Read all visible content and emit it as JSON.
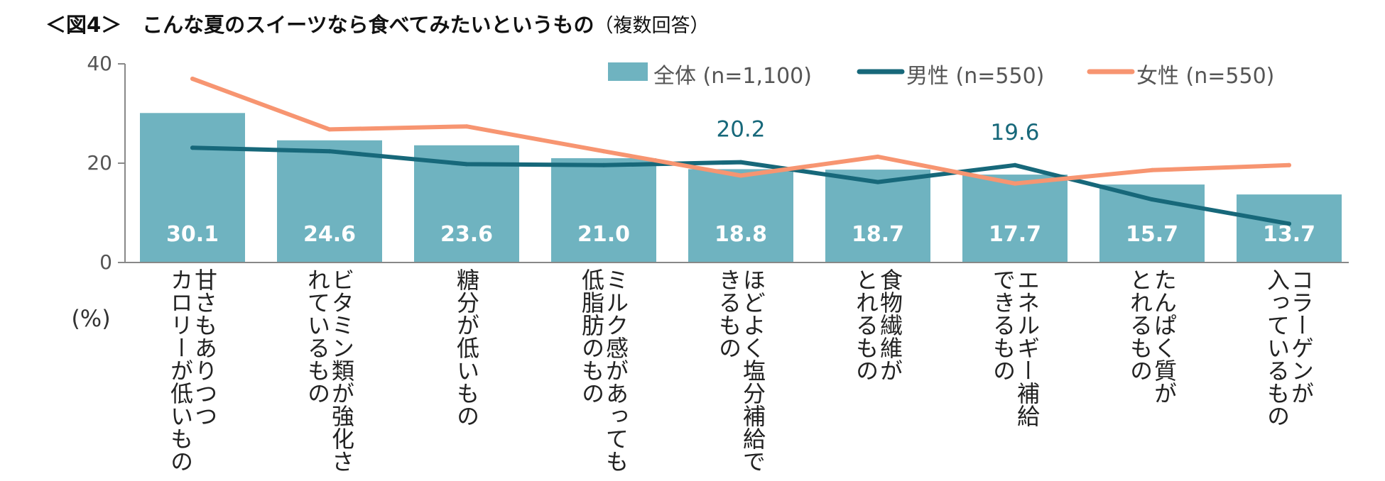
{
  "title": {
    "main": "＜図4＞　こんな夏のスイーツなら食べてみたいというもの",
    "sub": "（複数回答）"
  },
  "chart_data": {
    "type": "bar",
    "title": "＜図4＞　こんな夏のスイーツなら食べてみたいというもの（複数回答）",
    "ylabel": "(%)",
    "ylim": [
      0,
      40
    ],
    "yticks": [
      "0",
      "20",
      "40"
    ],
    "categories": [
      [
        "甘さもありつつ",
        "カロリーが低いもの"
      ],
      [
        "ビタミン類が強化さ",
        "れているもの"
      ],
      [
        "糖分が低いもの"
      ],
      [
        "ミルク感があっても",
        "低脂肪のもの"
      ],
      [
        "ほどよく塩分補給で",
        "きるもの"
      ],
      [
        "食物繊維が",
        "とれるもの"
      ],
      [
        "エネルギー補給",
        "できるもの"
      ],
      [
        "たんぱく質が",
        "とれるもの"
      ],
      [
        "コラーゲンが",
        "入っているもの"
      ]
    ],
    "series": [
      {
        "name": "全体 (n=1,100)",
        "kind": "bar",
        "color": "#6fb3c0",
        "values": [
          30.1,
          24.6,
          23.6,
          21.0,
          18.8,
          18.7,
          17.7,
          15.7,
          13.7
        ],
        "labels": [
          "30.1",
          "24.6",
          "23.6",
          "21.0",
          "18.8",
          "18.7",
          "17.7",
          "15.7",
          "13.7"
        ]
      },
      {
        "name": "男性 (n=550)",
        "kind": "line",
        "color": "#17687a",
        "values": [
          23.1,
          22.4,
          19.8,
          19.6,
          20.2,
          16.2,
          19.6,
          12.7,
          7.8
        ]
      },
      {
        "name": "女性 (n=550)",
        "kind": "line",
        "color": "#f79571",
        "values": [
          37.0,
          26.8,
          27.4,
          22.4,
          17.5,
          21.3,
          15.9,
          18.6,
          19.6
        ]
      }
    ],
    "annotations": [
      {
        "series": "男性 (n=550)",
        "index": 4,
        "text": "20.2"
      },
      {
        "series": "男性 (n=550)",
        "index": 6,
        "text": "19.6"
      }
    ],
    "legend": "top-right"
  }
}
